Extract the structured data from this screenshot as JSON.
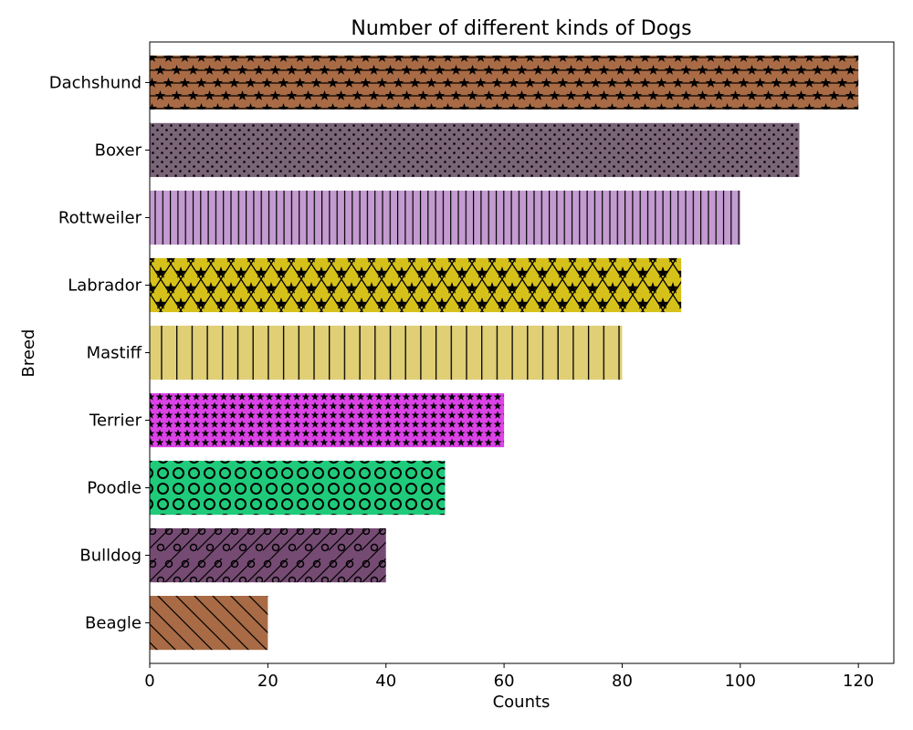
{
  "chart_data": {
    "type": "bar",
    "orientation": "horizontal",
    "title": "Number of different kinds of Dogs",
    "xlabel": "Counts",
    "ylabel": "Breed",
    "xlim": [
      0,
      126
    ],
    "xticks": [
      "0",
      "20",
      "40",
      "60",
      "80",
      "100",
      "120"
    ],
    "xtick_values": [
      0,
      20,
      40,
      60,
      80,
      100,
      120
    ],
    "grid": false,
    "legend": "none",
    "categories": [
      "Beagle",
      "Bulldog",
      "Poodle",
      "Terrier",
      "Mastiff",
      "Labrador",
      "Rottweiler",
      "Boxer",
      "Dachshund"
    ],
    "values": [
      20,
      40,
      50,
      60,
      80,
      90,
      100,
      110,
      120
    ],
    "bar_colors": [
      "#a86b45",
      "#754b73",
      "#1fcb7a",
      "#dc42e8",
      "#e0cf75",
      "#d6c11a",
      "#c49bd1",
      "#7a6478",
      "#a86b45"
    ],
    "bar_hatches": [
      "diagonal-back",
      "circles-diagonal",
      "rings",
      "small-stars",
      "vertical-wide",
      "stars-crosshatch",
      "vertical-dense",
      "dots",
      "stars-horizontal"
    ]
  }
}
